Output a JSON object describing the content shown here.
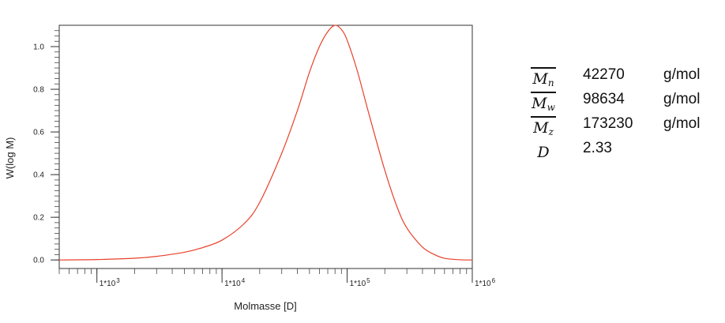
{
  "chart_data": {
    "type": "line",
    "xlabel": "Molmasse [D]",
    "ylabel": "W(log M)",
    "x_scale": "log",
    "xlim": [
      500,
      1000000
    ],
    "ylim": [
      -0.04,
      1.1
    ],
    "grid": false,
    "legend": "none",
    "x_ticks": [
      {
        "value": 1000,
        "label": "1*10",
        "exp": "3"
      },
      {
        "value": 10000,
        "label": "1*10",
        "exp": "4"
      },
      {
        "value": 100000,
        "label": "1*10",
        "exp": "5"
      },
      {
        "value": 1000000,
        "label": "1*10",
        "exp": "6"
      }
    ],
    "y_ticks": [
      {
        "value": 0.0,
        "label": "0.0"
      },
      {
        "value": 0.2,
        "label": "0.2"
      },
      {
        "value": 0.4,
        "label": "0.4"
      },
      {
        "value": 0.6,
        "label": "0.6"
      },
      {
        "value": 0.8,
        "label": "0.8"
      },
      {
        "value": 1.0,
        "label": "1.0"
      }
    ],
    "series": [
      {
        "color": "#e8402a",
        "x": [
          500,
          1000,
          2000,
          3000,
          5000,
          7000,
          10000,
          15000,
          20000,
          30000,
          40000,
          50000,
          60000,
          70000,
          80000,
          90000,
          100000,
          120000,
          150000,
          200000,
          250000,
          300000,
          400000,
          500000,
          600000,
          800000,
          1000000
        ],
        "y": [
          0.0,
          0.002,
          0.008,
          0.017,
          0.036,
          0.058,
          0.093,
          0.17,
          0.27,
          0.5,
          0.7,
          0.88,
          1.0,
          1.07,
          1.1,
          1.08,
          1.03,
          0.89,
          0.68,
          0.42,
          0.25,
          0.15,
          0.06,
          0.025,
          0.008,
          0.001,
          0.0
        ]
      }
    ]
  },
  "stats": [
    {
      "symbol": "M",
      "subscript": "n",
      "overline": true,
      "value": "42270",
      "unit": "g/mol"
    },
    {
      "symbol": "M",
      "subscript": "w",
      "overline": true,
      "value": "98634",
      "unit": "g/mol"
    },
    {
      "symbol": "M",
      "subscript": "z",
      "overline": true,
      "value": "173230",
      "unit": "g/mol"
    },
    {
      "symbol": "D",
      "subscript": "",
      "overline": false,
      "value": "2.33",
      "unit": ""
    }
  ]
}
